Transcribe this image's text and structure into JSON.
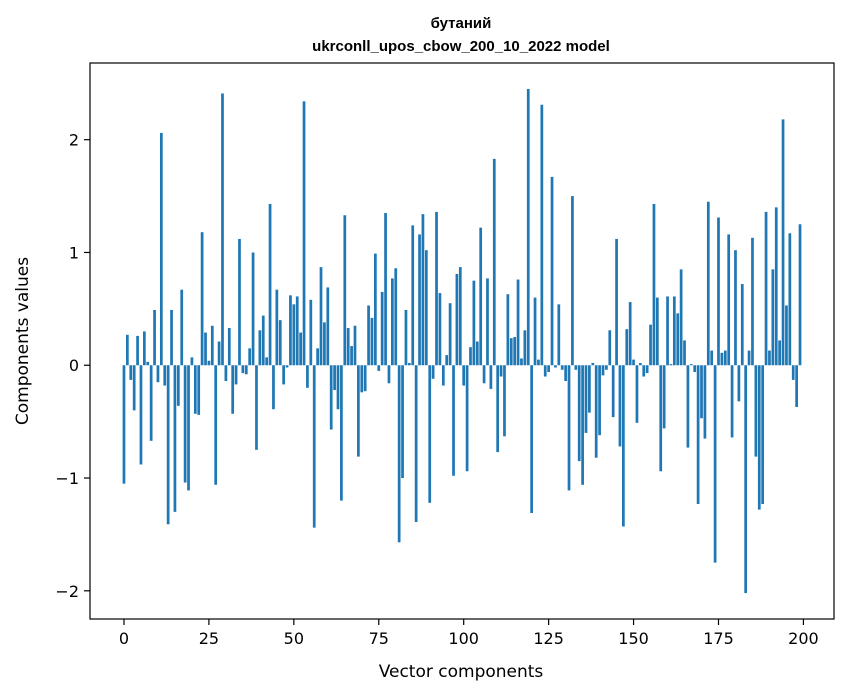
{
  "chart_data": {
    "type": "bar",
    "title": "бутаний",
    "subtitle": "ukrconll_upos_cbow_200_10_2022 model",
    "xlabel": "Vector components",
    "ylabel": "Components values",
    "xlim": [
      -10,
      209
    ],
    "ylim": [
      -2.25,
      2.68
    ],
    "xticks": [
      0,
      25,
      50,
      75,
      100,
      125,
      150,
      175,
      200
    ],
    "xtick_labels": [
      "0",
      "25",
      "50",
      "75",
      "100",
      "125",
      "150",
      "175",
      "200"
    ],
    "yticks": [
      -2,
      -1,
      0,
      1,
      2
    ],
    "ytick_labels": [
      "−2",
      "−1",
      "0",
      "1",
      "2"
    ],
    "grid": false,
    "bar_color": "#1f77b4",
    "x": [
      0,
      1,
      2,
      3,
      4,
      5,
      6,
      7,
      8,
      9,
      10,
      11,
      12,
      13,
      14,
      15,
      16,
      17,
      18,
      19,
      20,
      21,
      22,
      23,
      24,
      25,
      26,
      27,
      28,
      29,
      30,
      31,
      32,
      33,
      34,
      35,
      36,
      37,
      38,
      39,
      40,
      41,
      42,
      43,
      44,
      45,
      46,
      47,
      48,
      49,
      50,
      51,
      52,
      53,
      54,
      55,
      56,
      57,
      58,
      59,
      60,
      61,
      62,
      63,
      64,
      65,
      66,
      67,
      68,
      69,
      70,
      71,
      72,
      73,
      74,
      75,
      76,
      77,
      78,
      79,
      80,
      81,
      82,
      83,
      84,
      85,
      86,
      87,
      88,
      89,
      90,
      91,
      92,
      93,
      94,
      95,
      96,
      97,
      98,
      99,
      100,
      101,
      102,
      103,
      104,
      105,
      106,
      107,
      108,
      109,
      110,
      111,
      112,
      113,
      114,
      115,
      116,
      117,
      118,
      119,
      120,
      121,
      122,
      123,
      124,
      125,
      126,
      127,
      128,
      129,
      130,
      131,
      132,
      133,
      134,
      135,
      136,
      137,
      138,
      139,
      140,
      141,
      142,
      143,
      144,
      145,
      146,
      147,
      148,
      149,
      150,
      151,
      152,
      153,
      154,
      155,
      156,
      157,
      158,
      159,
      160,
      161,
      162,
      163,
      164,
      165,
      166,
      167,
      168,
      169,
      170,
      171,
      172,
      173,
      174,
      175,
      176,
      177,
      178,
      179,
      180,
      181,
      182,
      183,
      184,
      185,
      186,
      187,
      188,
      189,
      190,
      191,
      192,
      193,
      194,
      195,
      196,
      197,
      198,
      199
    ],
    "values": [
      -1.05,
      0.27,
      -0.13,
      -0.4,
      0.26,
      -0.88,
      0.3,
      0.03,
      -0.67,
      0.49,
      -0.15,
      2.06,
      -0.18,
      -1.41,
      0.49,
      -1.3,
      -0.36,
      0.67,
      -1.04,
      -1.11,
      0.07,
      -0.43,
      -0.44,
      1.18,
      0.29,
      0.04,
      0.35,
      -1.06,
      0.21,
      2.41,
      -0.14,
      0.33,
      -0.43,
      -0.17,
      1.12,
      -0.07,
      -0.08,
      0.15,
      1.0,
      -0.75,
      0.31,
      0.44,
      0.07,
      1.43,
      -0.39,
      0.67,
      0.4,
      -0.17,
      -0.02,
      0.62,
      0.54,
      0.61,
      0.29,
      2.34,
      -0.2,
      0.58,
      -1.44,
      0.15,
      0.87,
      0.38,
      0.69,
      -0.57,
      -0.22,
      -0.39,
      -1.2,
      1.33,
      0.33,
      0.17,
      0.35,
      -0.81,
      -0.24,
      -0.23,
      0.53,
      0.42,
      0.99,
      -0.05,
      0.65,
      1.35,
      -0.16,
      0.77,
      0.86,
      -1.57,
      -1.0,
      0.49,
      0.02,
      1.24,
      -1.39,
      1.16,
      1.34,
      1.02,
      -1.22,
      -0.12,
      1.36,
      0.64,
      -0.18,
      0.09,
      0.55,
      -0.98,
      0.81,
      0.87,
      -0.18,
      -0.94,
      0.16,
      0.75,
      0.21,
      1.22,
      -0.16,
      0.77,
      -0.21,
      1.83,
      -0.77,
      -0.1,
      -0.63,
      0.63,
      0.24,
      0.25,
      0.76,
      0.06,
      0.31,
      2.45,
      -1.31,
      0.6,
      0.05,
      2.31,
      -0.1,
      -0.06,
      1.67,
      -0.02,
      0.54,
      -0.04,
      -0.14,
      -1.11,
      1.5,
      -0.04,
      -0.85,
      -1.06,
      -0.6,
      -0.42,
      0.02,
      -0.82,
      -0.62,
      -0.09,
      -0.04,
      0.31,
      -0.46,
      1.12,
      -0.72,
      -1.43,
      0.32,
      0.56,
      0.05,
      -0.51,
      0.02,
      -0.1,
      -0.07,
      0.36,
      1.43,
      0.6,
      -0.94,
      -0.56,
      0.61,
      0.01,
      0.61,
      0.46,
      0.85,
      0.22,
      -0.73,
      0.01,
      -0.06,
      -1.23,
      -0.47,
      -0.65,
      1.45,
      0.13,
      -1.75,
      1.31,
      0.11,
      0.13,
      1.16,
      -0.64,
      1.02,
      -0.32,
      0.72,
      -2.02,
      0.13,
      1.13,
      -0.81,
      -1.28,
      -1.23,
      1.36,
      0.13,
      0.85,
      1.4,
      0.22,
      2.18,
      0.53,
      1.17,
      -0.13,
      -0.37,
      1.25
    ]
  }
}
